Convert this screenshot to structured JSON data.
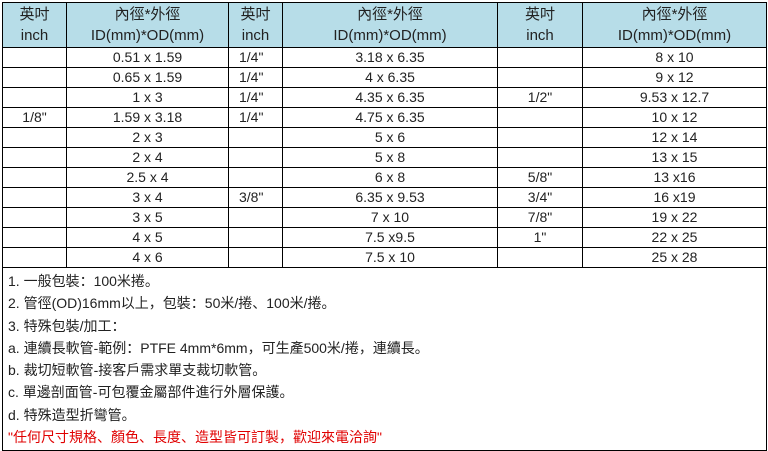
{
  "table": {
    "header": [
      [
        "英吋",
        "inch"
      ],
      [
        "內徑*外徑",
        "ID(mm)*OD(mm)"
      ],
      [
        "英吋",
        "inch"
      ],
      [
        "內徑*外徑",
        "ID(mm)*OD(mm)"
      ],
      [
        "英吋",
        "inch"
      ],
      [
        "內徑*外徑",
        "ID(mm)*OD(mm)"
      ]
    ],
    "rows": [
      [
        null,
        "0.51 x 1.59",
        "1/4\"",
        "3.18 x 6.35",
        null,
        "8 x 10"
      ],
      [
        null,
        "0.65 x 1.59",
        "1/4\"",
        "4  x  6.35",
        null,
        "9 x 12"
      ],
      [
        null,
        "1 x 3",
        "1/4\"",
        "4.35 x 6.35",
        "1/2\"",
        "9.53 x 12.7"
      ],
      [
        "1/8\"",
        "1.59 x 3.18",
        "1/4\"",
        "4.75 x 6.35",
        null,
        "10 x 12"
      ],
      [
        null,
        "2 x 3",
        null,
        "5 x 6",
        null,
        "12 x 14"
      ],
      [
        null,
        "2 x 4",
        null,
        "5 x 8",
        null,
        "13 x 15"
      ],
      [
        null,
        "2.5 x 4",
        null,
        "6 x 8",
        "5/8\"",
        "13 x16"
      ],
      [
        null,
        "3 x 4",
        "3/8\"",
        "6.35 x 9.53",
        "3/4\"",
        "16 x19"
      ],
      [
        null,
        "3 x 5",
        null,
        "7 x 10",
        "7/8\"",
        "19 x 22"
      ],
      [
        null,
        "4 x 5",
        null,
        "7.5 x9.5",
        "1\"",
        "22 x 25"
      ],
      [
        null,
        "4 x 6",
        null,
        "7.5 x 10",
        null,
        "25 x 28"
      ]
    ]
  },
  "notes": [
    "1. 一般包裝：100米捲。",
    "2. 管徑(OD)16mm以上，包裝：50米/捲、100米/捲。",
    "3. 特殊包裝/加工：",
    "a. 連續長軟管-範例：PTFE 4mm*6mm，可生產500米/捲，連續長。",
    "b. 裁切短軟管-接客戶需求單支裁切軟管。",
    "c. 單邊剖面管-可包覆金屬部件進行外層保護。",
    "d. 特殊造型折彎管。",
    "\"任何尺寸規格、顏色、長度、造型皆可訂製，歡迎來電洽詢\""
  ]
}
